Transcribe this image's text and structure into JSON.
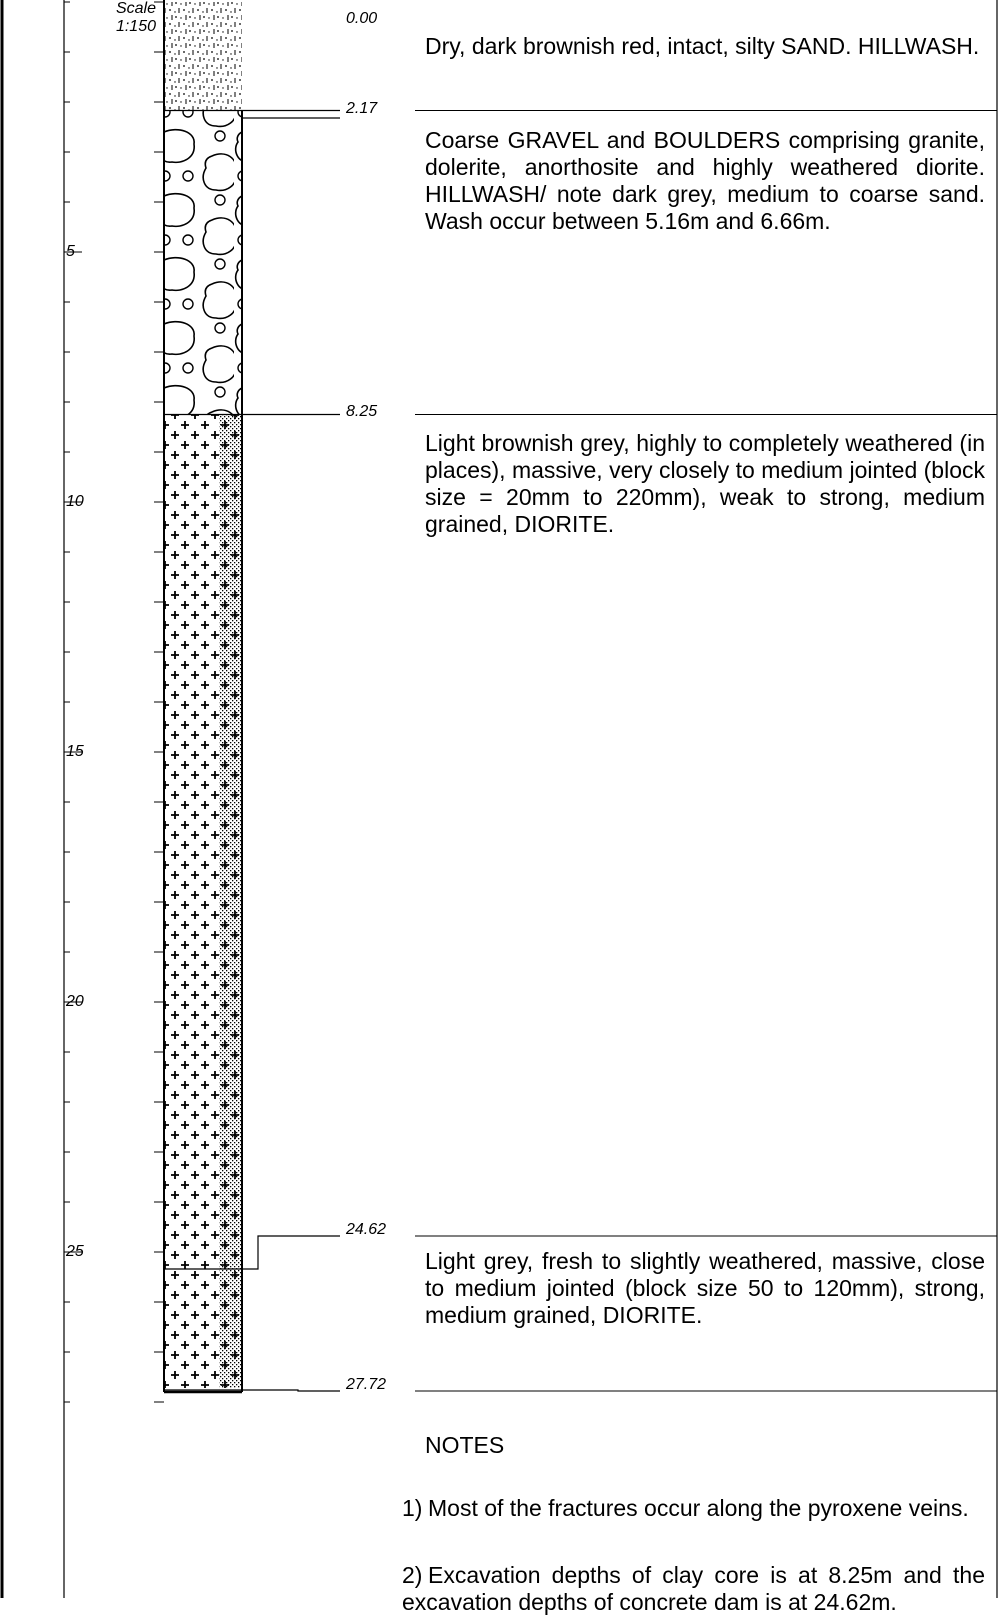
{
  "scale": {
    "label": "Scale",
    "value": "1:150"
  },
  "depth_axis": {
    "ticks": [
      "5",
      "10",
      "15",
      "20",
      "25"
    ]
  },
  "layers": [
    {
      "top": "0.00",
      "bottom": "2.17",
      "pattern": "silty-sand",
      "description": "Dry, dark brownish red, intact, silty SAND. HILLWASH."
    },
    {
      "top": "2.17",
      "bottom": "8.25",
      "pattern": "gravel-boulders",
      "description": "Coarse GRAVEL and BOULDERS comprising granite, dolerite, anorthosite and highly weathered diorite. HILLWASH/ note dark grey, medium to coarse sand. Wash occur between 5.16m and 6.66m."
    },
    {
      "top": "8.25",
      "bottom": "24.62",
      "pattern": "diorite",
      "description": "Light brownish grey, highly to completely weathered (in places), massive, very closely to medium jointed (block size = 20mm to 220mm), weak to strong, medium grained, DIORITE."
    },
    {
      "top": "24.62",
      "bottom": "27.72",
      "pattern": "diorite",
      "description": "Light grey, fresh to slightly weathered, massive, close to medium jointed (block size 50 to 120mm), strong, medium grained, DIORITE."
    }
  ],
  "depth_labels": [
    "0.00",
    "2.17",
    "8.25",
    "24.62",
    "27.72"
  ],
  "notes": {
    "title": "NOTES",
    "items": [
      {
        "num": "1)",
        "text": "Most of the fractures occur along the pyroxene veins."
      },
      {
        "num": "2)",
        "text": "Excavation depths of clay core is at 8.25m and the excavation depths of concrete dam is at 24.62m."
      }
    ]
  }
}
